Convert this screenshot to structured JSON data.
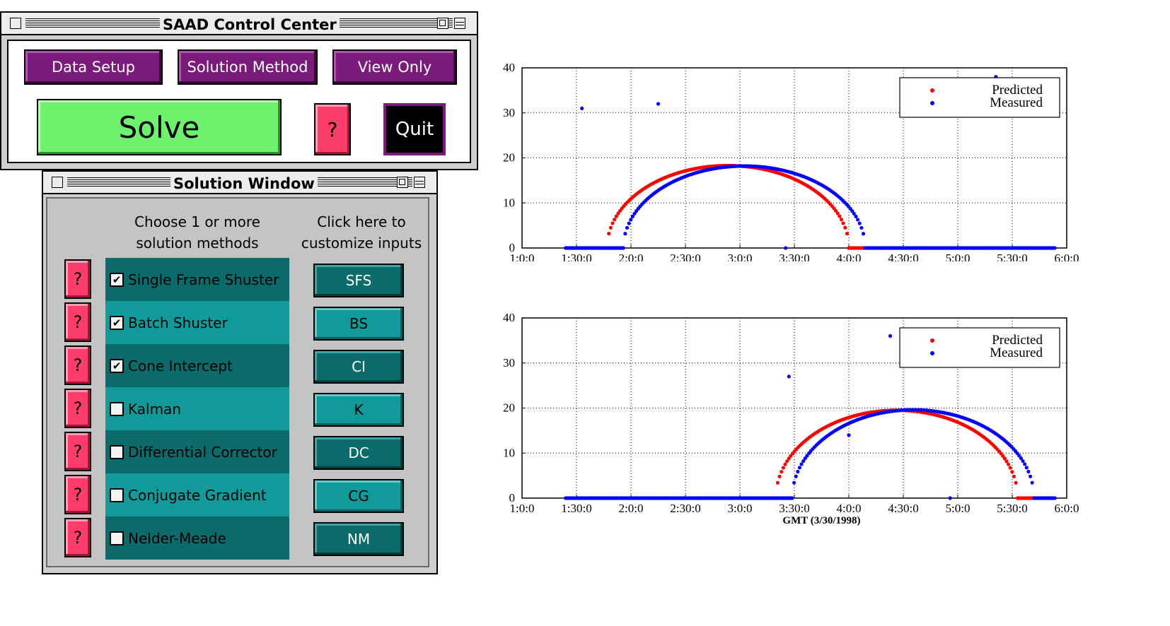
{
  "control_center": {
    "title": "SAAD Control Center",
    "buttons": {
      "data_setup": "Data Setup",
      "solution_method": "Solution Method",
      "view_only": "View Only",
      "solve": "Solve",
      "help": "?",
      "quit": "Quit"
    }
  },
  "solution_window": {
    "title": "Solution Window",
    "col_choose": [
      "Choose 1 or more",
      "solution methods"
    ],
    "col_customize": [
      "Click here to",
      "customize inputs"
    ],
    "help_label": "?",
    "methods": [
      {
        "label": "Single Frame Shuster",
        "checked": true,
        "code": "SFS"
      },
      {
        "label": "Batch Shuster",
        "checked": true,
        "code": "BS"
      },
      {
        "label": "Cone Intercept",
        "checked": true,
        "code": "CI"
      },
      {
        "label": "Kalman",
        "checked": false,
        "code": "K"
      },
      {
        "label": "Differential Corrector",
        "checked": false,
        "code": "DC"
      },
      {
        "label": "Conjugate Gradient",
        "checked": false,
        "code": "CG"
      },
      {
        "label": "Nelder-Meade",
        "checked": false,
        "code": "NM"
      }
    ]
  },
  "chart_data": [
    {
      "type": "scatter",
      "title": "",
      "xlabel": "",
      "ylabel": "",
      "x_unit": "hours GMT",
      "xlim": [
        1.0,
        6.0
      ],
      "ylim": [
        0,
        40
      ],
      "x_ticks": [
        1.0,
        1.5,
        2.0,
        2.5,
        3.0,
        3.5,
        4.0,
        4.5,
        5.0,
        5.5,
        6.0
      ],
      "x_tick_labels": [
        "1:0:0",
        "1:30:0",
        "2:0:0",
        "2:30:0",
        "3:0:0",
        "3:30:0",
        "4:0:0",
        "4:30:0",
        "5:0:0",
        "5:30:0",
        "6:0:0"
      ],
      "y_ticks": [
        0,
        10,
        20,
        30,
        40
      ],
      "y_tick_labels": [
        "0",
        "10",
        "20",
        "30",
        "40"
      ],
      "grid": true,
      "legend": "top-right",
      "colors": {
        "Predicted": "#ff0000",
        "Measured": "#0000ff"
      },
      "series": [
        {
          "name": "Predicted",
          "arc": {
            "start": 1.78,
            "end": 4.0,
            "peak": 18.3
          },
          "zero_segments": [
            [
              4.0,
              4.15
            ]
          ],
          "outliers": []
        },
        {
          "name": "Measured",
          "arc": {
            "start": 1.93,
            "end": 4.15,
            "peak": 18.2
          },
          "zero_segments": [
            [
              1.4,
              1.93
            ],
            [
              4.15,
              5.9
            ]
          ],
          "outliers": [
            [
              1.55,
              31
            ],
            [
              2.25,
              32
            ],
            [
              5.35,
              38
            ],
            [
              3.42,
              0
            ]
          ]
        }
      ]
    },
    {
      "type": "scatter",
      "title": "",
      "xlabel": "GMT (3/30/1998)",
      "ylabel": "",
      "x_unit": "hours GMT",
      "xlim": [
        1.0,
        6.0
      ],
      "ylim": [
        0,
        40
      ],
      "x_ticks": [
        1.0,
        1.5,
        2.0,
        2.5,
        3.0,
        3.5,
        4.0,
        4.5,
        5.0,
        5.5,
        6.0
      ],
      "x_tick_labels": [
        "1:0:0",
        "1:30:0",
        "2:0:0",
        "2:30:0",
        "3:0:0",
        "3:30:0",
        "4:0:0",
        "4:30:0",
        "5:0:0",
        "5:30:0",
        "6:0:0"
      ],
      "y_ticks": [
        0,
        10,
        20,
        30,
        40
      ],
      "y_tick_labels": [
        "0",
        "10",
        "20",
        "30",
        "40"
      ],
      "grid": true,
      "legend": "top-right",
      "colors": {
        "Predicted": "#ff0000",
        "Measured": "#0000ff"
      },
      "series": [
        {
          "name": "Predicted",
          "arc": {
            "start": 3.33,
            "end": 5.55,
            "peak": 19.5
          },
          "zero_segments": [
            [
              5.55,
              5.75
            ]
          ],
          "outliers": []
        },
        {
          "name": "Measured",
          "arc": {
            "start": 3.48,
            "end": 5.7,
            "peak": 19.6
          },
          "zero_segments": [
            [
              1.4,
              3.48
            ],
            [
              5.7,
              5.9
            ]
          ],
          "outliers": [
            [
              3.45,
              27
            ],
            [
              4.38,
              36
            ],
            [
              4.0,
              14
            ],
            [
              4.93,
              0
            ]
          ]
        }
      ]
    }
  ]
}
